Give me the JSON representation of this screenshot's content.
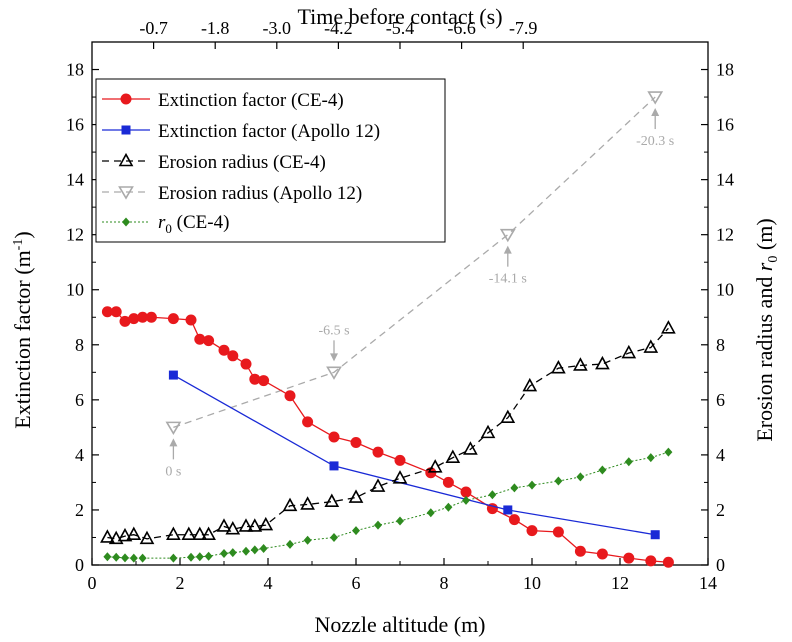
{
  "chart_data": {
    "type": "scatter",
    "title": "",
    "xlabel": "Nozzle altitude (m)",
    "ylabel": "Extinction factor (m⁻¹)",
    "ylabel_main": "Extinction factor (m",
    "ylabel_sup": "-1",
    "ylabel_close": ")",
    "y2label_pre": "Erosion radius and ",
    "y2label_var": "r",
    "y2label_sub": "0",
    "y2label_post": " (m)",
    "top_xlabel": "Time before contact (s)",
    "xlim": [
      0,
      14
    ],
    "ylim": [
      0,
      19
    ],
    "y2lim": [
      0,
      19
    ],
    "x_ticks": [
      "0",
      "2",
      "4",
      "6",
      "8",
      "10",
      "12",
      "14"
    ],
    "y_ticks": [
      "0",
      "2",
      "4",
      "6",
      "8",
      "10",
      "12",
      "14",
      "16",
      "18"
    ],
    "y2_ticks": [
      "0",
      "2",
      "4",
      "6",
      "8",
      "10",
      "12",
      "14",
      "16",
      "18"
    ],
    "top_ticks": [
      {
        "label": "-0.7",
        "x": 1.4
      },
      {
        "label": "-1.8",
        "x": 2.8
      },
      {
        "label": "-3.0",
        "x": 4.2
      },
      {
        "label": "-4.2",
        "x": 5.6
      },
      {
        "label": "-5.4",
        "x": 7.0
      },
      {
        "label": "-6.6",
        "x": 8.4
      },
      {
        "label": "-7.9",
        "x": 9.8
      }
    ],
    "series": [
      {
        "name": "Extinction factor (CE-4)",
        "axis": "left",
        "color": "#e8191d",
        "marker": "circle",
        "line": "solid",
        "x": [
          0.35,
          0.55,
          0.75,
          0.95,
          1.15,
          1.35,
          1.85,
          2.25,
          2.45,
          2.65,
          3.0,
          3.2,
          3.5,
          3.7,
          3.9,
          4.5,
          4.9,
          5.5,
          6.0,
          6.5,
          7.0,
          7.7,
          8.1,
          8.5,
          9.1,
          9.6,
          10.0,
          10.6,
          11.1,
          11.6,
          12.2,
          12.7,
          13.1
        ],
        "y": [
          9.2,
          9.2,
          8.85,
          8.95,
          9.0,
          9.0,
          8.95,
          8.9,
          8.2,
          8.15,
          7.8,
          7.6,
          7.3,
          6.75,
          6.7,
          6.15,
          5.2,
          4.65,
          4.45,
          4.1,
          3.8,
          3.35,
          3.0,
          2.65,
          2.05,
          1.65,
          1.25,
          1.2,
          0.5,
          0.4,
          0.25,
          0.15,
          0.1
        ]
      },
      {
        "name": "Extinction factor (Apollo 12)",
        "axis": "left",
        "color": "#1a2ad6",
        "marker": "square",
        "line": "solid",
        "x": [
          1.85,
          5.5,
          9.45,
          12.8
        ],
        "y": [
          6.9,
          3.6,
          2.0,
          1.1
        ]
      },
      {
        "name": "Erosion radius (CE-4)",
        "axis": "right",
        "color": "#000000",
        "marker": "triangle-up",
        "line": "dashed",
        "x": [
          0.35,
          0.55,
          0.75,
          0.95,
          1.25,
          1.85,
          2.2,
          2.45,
          2.65,
          3.0,
          3.2,
          3.5,
          3.7,
          3.95,
          4.5,
          4.9,
          5.45,
          6.0,
          6.5,
          7.0,
          7.8,
          8.2,
          8.6,
          9.0,
          9.45,
          9.95,
          10.6,
          11.1,
          11.6,
          12.2,
          12.7,
          13.1
        ],
        "y": [
          1.0,
          0.95,
          1.05,
          1.1,
          0.95,
          1.1,
          1.1,
          1.1,
          1.1,
          1.4,
          1.3,
          1.4,
          1.4,
          1.45,
          2.15,
          2.2,
          2.3,
          2.45,
          2.85,
          3.15,
          3.55,
          3.9,
          4.2,
          4.8,
          5.35,
          6.5,
          7.15,
          7.25,
          7.3,
          7.7,
          7.9,
          8.6
        ]
      },
      {
        "name": "Erosion radius (Apollo 12)",
        "axis": "right",
        "color": "#aaaaaa",
        "marker": "triangle-down",
        "line": "dashed",
        "x": [
          1.85,
          5.5,
          9.45,
          12.8
        ],
        "y": [
          5.0,
          7.0,
          12.0,
          17.0
        ]
      },
      {
        "name_var": "r",
        "name_sub": "0",
        "name_post": " (CE-4)",
        "name": "r0 (CE-4)",
        "axis": "right",
        "color": "#2e8b1f",
        "marker": "diamond",
        "line": "dotted",
        "x": [
          0.35,
          0.55,
          0.75,
          0.95,
          1.15,
          1.85,
          2.25,
          2.45,
          2.65,
          3.0,
          3.2,
          3.5,
          3.7,
          3.9,
          4.5,
          4.9,
          5.5,
          6.0,
          6.5,
          7.0,
          7.7,
          8.1,
          8.5,
          9.1,
          9.6,
          10.0,
          10.6,
          11.1,
          11.6,
          12.2,
          12.7,
          13.1
        ],
        "y": [
          0.3,
          0.28,
          0.26,
          0.25,
          0.25,
          0.25,
          0.28,
          0.3,
          0.32,
          0.42,
          0.45,
          0.5,
          0.55,
          0.6,
          0.75,
          0.9,
          1.0,
          1.25,
          1.45,
          1.6,
          1.9,
          2.1,
          2.35,
          2.55,
          2.8,
          2.9,
          3.05,
          3.2,
          3.45,
          3.75,
          3.9,
          4.1
        ]
      }
    ],
    "annotations": [
      {
        "text": "0 s",
        "x": 1.85,
        "y": 5.0,
        "placement": "below"
      },
      {
        "text": "-6.5 s",
        "x": 5.5,
        "y": 7.0,
        "placement": "above"
      },
      {
        "text": "-14.1 s",
        "x": 9.45,
        "y": 12.0,
        "placement": "below"
      },
      {
        "text": "-20.3 s",
        "x": 12.8,
        "y": 17.0,
        "placement": "below"
      }
    ],
    "legend_position": "top-left"
  }
}
